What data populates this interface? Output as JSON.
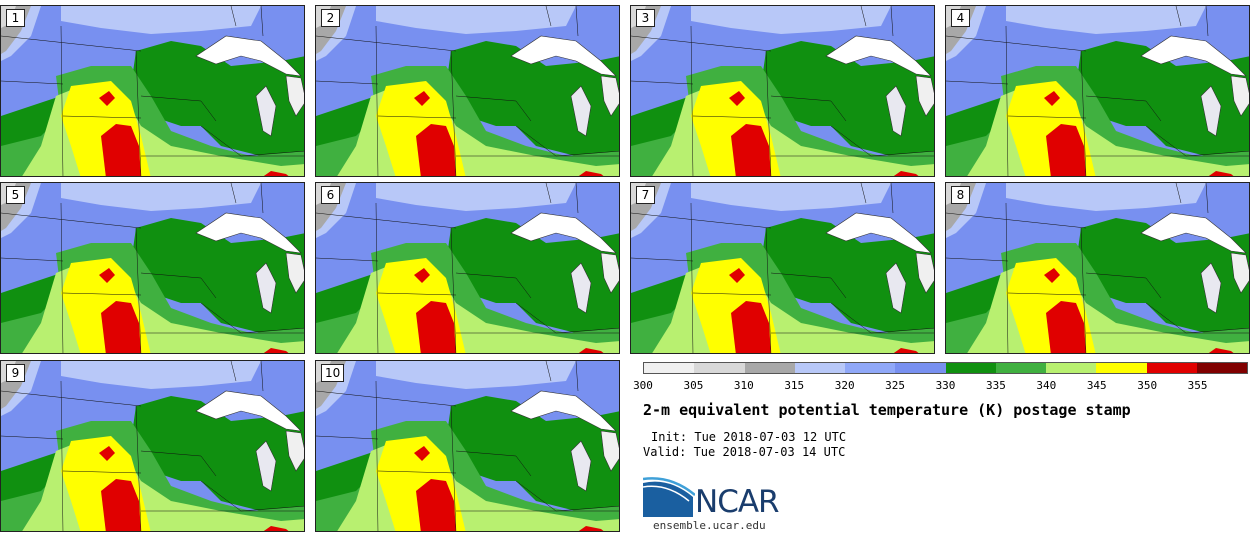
{
  "panels": [
    {
      "label": "1"
    },
    {
      "label": "2"
    },
    {
      "label": "3"
    },
    {
      "label": "4"
    },
    {
      "label": "5"
    },
    {
      "label": "6"
    },
    {
      "label": "7"
    },
    {
      "label": "8"
    },
    {
      "label": "9"
    },
    {
      "label": "10"
    }
  ],
  "colorbar": {
    "colors": [
      "#f0f0f0",
      "#d8d8d8",
      "#a8a8a8",
      "#b8c8f8",
      "#90a8f8",
      "#7890f0",
      "#109010",
      "#40b040",
      "#b8f070",
      "#ffff00",
      "#e00000",
      "#800000"
    ],
    "tick_labels": [
      "300",
      "305",
      "310",
      "315",
      "320",
      "325",
      "330",
      "335",
      "340",
      "345",
      "350",
      "355"
    ]
  },
  "title": "2-m equivalent potential temperature (K) postage stamp",
  "init": "Init: Tue 2018-07-03 12 UTC",
  "valid": "Valid: Tue 2018-07-03 14 UTC",
  "logo_text": "NCAR",
  "website": "ensemble.ucar.edu"
}
